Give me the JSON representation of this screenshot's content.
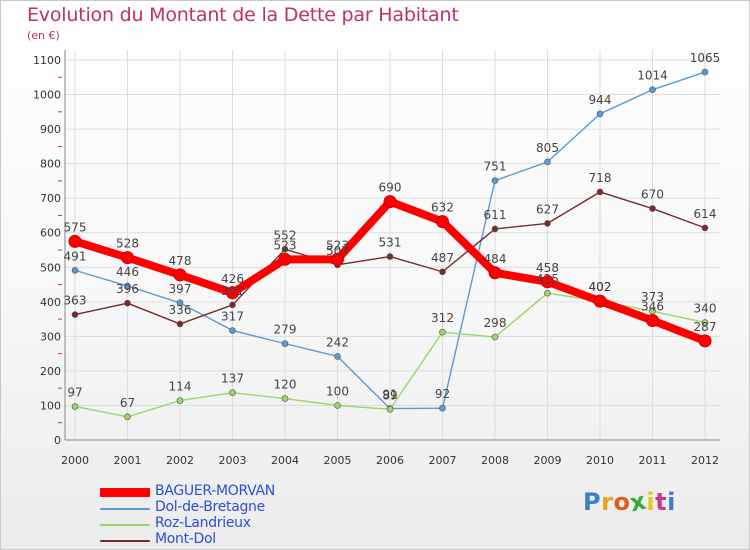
{
  "chart_data": {
    "type": "line",
    "title": "Evolution du Montant de la Dette par Habitant",
    "subtitle": "(en €)",
    "categories": [
      "2000",
      "2001",
      "2002",
      "2003",
      "2004",
      "2005",
      "2006",
      "2007",
      "2008",
      "2009",
      "2010",
      "2011",
      "2012"
    ],
    "ylim": [
      0,
      1100
    ],
    "yticks": [
      0,
      100,
      200,
      300,
      400,
      500,
      600,
      700,
      800,
      900,
      1000,
      1100
    ],
    "grid": true,
    "legend_position": "bottom-left",
    "series": [
      {
        "name": "BAGUER-MORVAN",
        "color": "#ff0000",
        "emphasis": true,
        "values": [
          575,
          528,
          478,
          426,
          523,
          523,
          690,
          632,
          484,
          458,
          402,
          346,
          287
        ]
      },
      {
        "name": "Dol-de-Bretagne",
        "color": "#5a9bd5",
        "values": [
          491,
          446,
          397,
          317,
          279,
          242,
          91,
          92,
          751,
          805,
          944,
          1014,
          1065
        ]
      },
      {
        "name": "Roz-Landrieux",
        "color": "#9ad66a",
        "values": [
          97,
          67,
          114,
          137,
          120,
          100,
          89,
          312,
          298,
          425,
          402,
          373,
          340
        ]
      },
      {
        "name": "Mont-Dol",
        "color": "#7a2a2a",
        "values": [
          363,
          396,
          336,
          391,
          552,
          507,
          531,
          487,
          611,
          627,
          718,
          670,
          614
        ]
      }
    ],
    "data_labels": [
      [
        "575",
        "528",
        "478",
        "426",
        "523",
        "523",
        "690",
        "632",
        "484",
        "458",
        "402",
        "346",
        "287"
      ],
      [
        "491",
        "446",
        "397",
        "317",
        "279",
        "242",
        "91",
        "92",
        "751",
        "805",
        "944",
        "1014",
        "1065"
      ],
      [
        "97",
        "67",
        "114",
        "137",
        "120",
        "100",
        "89",
        "312",
        "298",
        "425",
        "402",
        "373",
        "340"
      ],
      [
        "363",
        "396",
        "336",
        "391",
        "552",
        "507",
        "531",
        "487",
        "611",
        "627",
        "718",
        "670",
        "614"
      ]
    ]
  },
  "logo": {
    "text": "Proxiti",
    "letter_colors": [
      "#3a7ec8",
      "#e8a21d",
      "#e05a1a",
      "#3aa83a",
      "#e8c81d",
      "#c83a8c",
      "#3a7ec8"
    ]
  }
}
